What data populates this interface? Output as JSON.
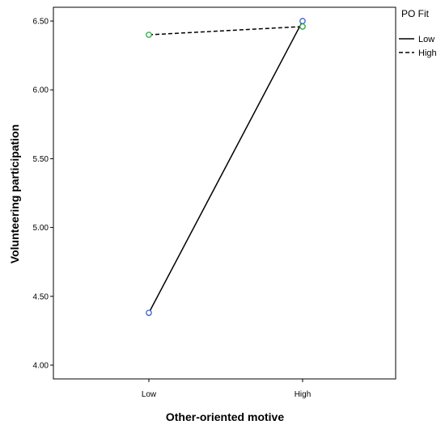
{
  "chart_data": {
    "type": "line",
    "title": "",
    "xlabel": "Other-oriented motive",
    "ylabel": "Volunteering participation",
    "categories": [
      "Low",
      "High"
    ],
    "ylim": [
      3.9,
      6.6
    ],
    "yticks": [
      "4.00",
      "4.50",
      "5.00",
      "5.50",
      "6.00",
      "6.50"
    ],
    "grid": false,
    "legend": {
      "title": "PO Fit",
      "position": "right"
    },
    "series": [
      {
        "name": "Low",
        "values": [
          4.38,
          6.5
        ],
        "line_style": "solid",
        "line_color": "#000000",
        "marker_color": "#3a5fcd"
      },
      {
        "name": "High",
        "values": [
          6.4,
          6.46
        ],
        "line_style": "dashed",
        "line_color": "#000000",
        "marker_color": "#22aa44"
      }
    ]
  }
}
